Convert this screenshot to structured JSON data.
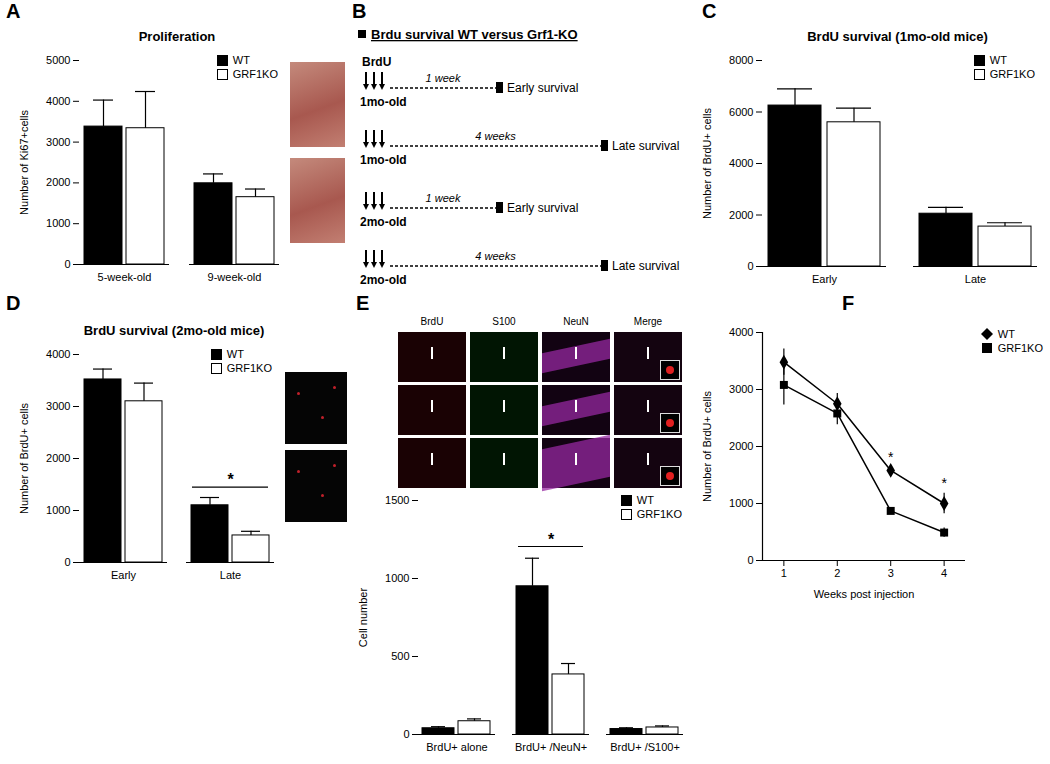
{
  "panel_labels": [
    "A",
    "B",
    "C",
    "D",
    "E",
    "F"
  ],
  "diagram": {
    "title": "Brdu survival WT versus Grf1-KO",
    "injection_label": "BrdU",
    "rows": [
      {
        "age": "1mo-old",
        "interval": "1 week",
        "outcome": "Early survival"
      },
      {
        "age": "1mo-old",
        "interval": "4 weeks",
        "outcome": "Late survival"
      },
      {
        "age": "2mo-old",
        "interval": "1 week",
        "outcome": "Early survival"
      },
      {
        "age": "2mo-old",
        "interval": "4 weeks",
        "outcome": "Late survival"
      }
    ]
  },
  "micrograph_channels": [
    "BrdU",
    "S100",
    "NeuN",
    "Merge"
  ],
  "chart_data": [
    {
      "type": "bar",
      "title": "Proliferation",
      "y_label": "Number of Ki67+cells",
      "categories": [
        "5-week-old",
        "9-week-old"
      ],
      "series": [
        {
          "name": "WT",
          "color": "#000000",
          "values": [
            3380,
            1990
          ],
          "errors": [
            650,
            230
          ]
        },
        {
          "name": "GRF1KO",
          "color": "#ffffff",
          "values": [
            3340,
            1650
          ],
          "errors": [
            900,
            200
          ]
        }
      ],
      "ylim": [
        0,
        5000
      ],
      "yticks": [
        0,
        1000,
        2000,
        3000,
        4000,
        5000
      ],
      "legend": "top-right",
      "grid": false
    },
    {
      "type": "bar",
      "title": "BrdU survival (1mo-old mice)",
      "y_label": "Number of BrdU+ cells",
      "categories": [
        "Early",
        "Late"
      ],
      "series": [
        {
          "name": "WT",
          "color": "#000000",
          "values": [
            6250,
            2050
          ],
          "errors": [
            650,
            250
          ]
        },
        {
          "name": "GRF1KO",
          "color": "#ffffff",
          "values": [
            5600,
            1550
          ],
          "errors": [
            550,
            150
          ]
        }
      ],
      "ylim": [
        0,
        8000
      ],
      "yticks": [
        0,
        2000,
        4000,
        6000,
        8000
      ],
      "legend": "top-right",
      "grid": false
    },
    {
      "type": "bar",
      "title": "BrdU survival (2mo-old mice)",
      "y_label": "Number of BrdU+ cells",
      "categories": [
        "Early",
        "Late"
      ],
      "series": [
        {
          "name": "WT",
          "color": "#000000",
          "values": [
            3520,
            1100
          ],
          "errors": [
            200,
            150
          ]
        },
        {
          "name": "GRF1KO",
          "color": "#ffffff",
          "values": [
            3100,
            520
          ],
          "errors": [
            350,
            80
          ]
        }
      ],
      "ylim": [
        0,
        4000
      ],
      "yticks": [
        0,
        1000,
        2000,
        3000,
        4000
      ],
      "legend": "top-right",
      "grid": false,
      "annotations": [
        {
          "label": "*",
          "category": "Late"
        }
      ]
    },
    {
      "type": "bar",
      "y_label": "Cell number",
      "categories": [
        "BrdU+ alone",
        "BrdU+ /NeuN+",
        "BrdU+ /S100+"
      ],
      "series": [
        {
          "name": "WT",
          "color": "#000000",
          "values": [
            40,
            950,
            35
          ],
          "errors": [
            10,
            180,
            8
          ]
        },
        {
          "name": "GRF1KO",
          "color": "#ffffff",
          "values": [
            85,
            385,
            45
          ],
          "errors": [
            15,
            70,
            10
          ]
        }
      ],
      "ylim": [
        0,
        1500
      ],
      "yticks": [
        0,
        500,
        1000,
        1500
      ],
      "legend": "top-right",
      "grid": false,
      "annotations": [
        {
          "label": "*",
          "category": "BrdU+ /NeuN+"
        }
      ]
    },
    {
      "type": "line",
      "x_label": "Weeks post injection",
      "y_label": "Number of BrdU+ cells",
      "x": [
        1,
        2,
        3,
        4
      ],
      "series": [
        {
          "name": "WT",
          "color": "#000000",
          "marker": "diamond",
          "values": [
            3480,
            2750,
            1580,
            1000
          ],
          "errors": [
            230,
            180,
            60,
            180
          ]
        },
        {
          "name": "GRF1KO",
          "color": "#000000",
          "marker": "square",
          "values": [
            3080,
            2580,
            870,
            490
          ],
          "errors": [
            350,
            200,
            50,
            80
          ]
        }
      ],
      "xlim": [
        0.6,
        4.4
      ],
      "xticks": [
        1,
        2,
        3,
        4
      ],
      "ylim": [
        0,
        4000
      ],
      "yticks": [
        0,
        1000,
        2000,
        3000,
        4000
      ],
      "legend": "right",
      "grid": false,
      "annotations": [
        {
          "label": "*",
          "x": 3
        },
        {
          "label": "*",
          "x": 4
        }
      ]
    }
  ]
}
